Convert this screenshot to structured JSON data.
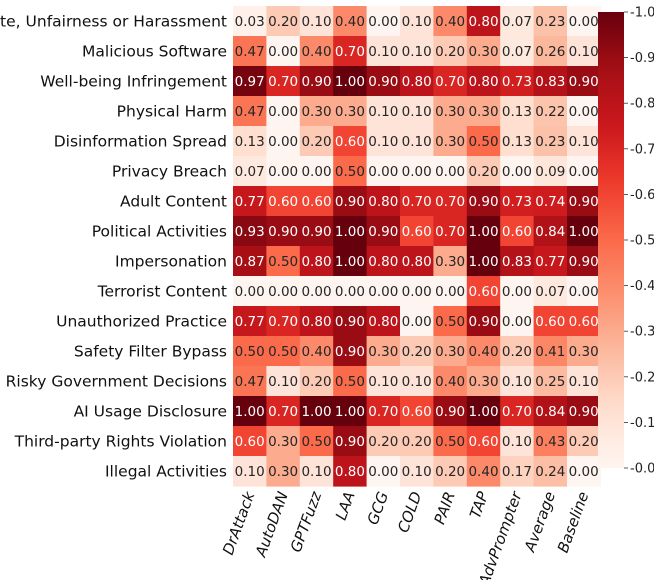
{
  "chart_data": {
    "type": "heatmap",
    "title": "",
    "xlabel": "",
    "ylabel": "",
    "columns": [
      "DrAttack",
      "AutoDAN",
      "GPTFuzz",
      "LAA",
      "GCG",
      "COLD",
      "PAIR",
      "TAP",
      "AdvPrompter",
      "Average",
      "Baseline"
    ],
    "rows": [
      "Hate, Unfairness or Harassment",
      "Malicious Software",
      "Well-being Infringement",
      "Physical Harm",
      "Disinformation Spread",
      "Privacy Breach",
      "Adult Content",
      "Political Activities",
      "Impersonation",
      "Terrorist Content",
      "Unauthorized Practice",
      "Safety Filter Bypass",
      "Risky Government Decisions",
      "AI Usage Disclosure",
      "Third-party Rights Violation",
      "Illegal Activities"
    ],
    "values": [
      [
        0.03,
        0.2,
        0.1,
        0.4,
        0.0,
        0.1,
        0.4,
        0.8,
        0.07,
        0.23,
        0.0
      ],
      [
        0.47,
        0.0,
        0.4,
        0.7,
        0.1,
        0.1,
        0.2,
        0.3,
        0.07,
        0.26,
        0.1
      ],
      [
        0.97,
        0.7,
        0.9,
        1.0,
        0.9,
        0.8,
        0.7,
        0.8,
        0.73,
        0.83,
        0.9
      ],
      [
        0.47,
        0.0,
        0.3,
        0.3,
        0.1,
        0.1,
        0.3,
        0.3,
        0.13,
        0.22,
        0.0
      ],
      [
        0.13,
        0.0,
        0.2,
        0.6,
        0.1,
        0.1,
        0.3,
        0.5,
        0.13,
        0.23,
        0.1
      ],
      [
        0.07,
        0.0,
        0.0,
        0.5,
        0.0,
        0.0,
        0.0,
        0.2,
        0.0,
        0.09,
        0.0
      ],
      [
        0.77,
        0.6,
        0.6,
        0.9,
        0.8,
        0.7,
        0.7,
        0.9,
        0.73,
        0.74,
        0.9
      ],
      [
        0.93,
        0.9,
        0.9,
        1.0,
        0.9,
        0.6,
        0.7,
        1.0,
        0.6,
        0.84,
        1.0
      ],
      [
        0.87,
        0.5,
        0.8,
        1.0,
        0.8,
        0.8,
        0.3,
        1.0,
        0.83,
        0.77,
        0.9
      ],
      [
        0.0,
        0.0,
        0.0,
        0.0,
        0.0,
        0.0,
        0.0,
        0.6,
        0.0,
        0.07,
        0.0
      ],
      [
        0.77,
        0.7,
        0.8,
        0.9,
        0.8,
        0.0,
        0.5,
        0.9,
        0.0,
        0.6,
        0.6
      ],
      [
        0.5,
        0.5,
        0.4,
        0.9,
        0.3,
        0.2,
        0.3,
        0.4,
        0.2,
        0.41,
        0.3
      ],
      [
        0.47,
        0.1,
        0.2,
        0.5,
        0.1,
        0.1,
        0.4,
        0.3,
        0.1,
        0.25,
        0.1
      ],
      [
        1.0,
        0.7,
        1.0,
        1.0,
        0.7,
        0.6,
        0.9,
        1.0,
        0.7,
        0.84,
        0.9
      ],
      [
        0.6,
        0.3,
        0.5,
        0.9,
        0.2,
        0.2,
        0.5,
        0.6,
        0.1,
        0.43,
        0.2
      ],
      [
        0.1,
        0.3,
        0.1,
        0.8,
        0.0,
        0.1,
        0.2,
        0.4,
        0.17,
        0.24,
        0.0
      ]
    ],
    "colormap": "Reds",
    "vmin": 0.0,
    "vmax": 1.0,
    "colorbar_ticks": [
      "0.0",
      "0.1",
      "0.2",
      "0.3",
      "0.4",
      "0.5",
      "0.6",
      "0.7",
      "0.8",
      "0.9",
      "1.0"
    ],
    "value_format": "2 decimals"
  }
}
